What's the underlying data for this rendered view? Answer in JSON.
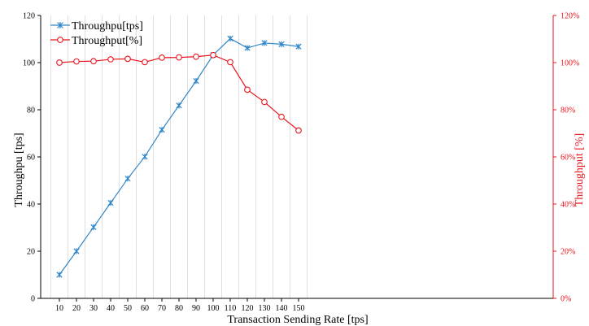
{
  "chart_data": {
    "type": "line",
    "x": [
      10,
      20,
      30,
      40,
      50,
      60,
      70,
      80,
      90,
      100,
      110,
      120,
      130,
      140,
      150
    ],
    "xlabel": "Transaction Sending Rate  [tps]",
    "ylabel_left": "Throughpu  [tps]",
    "ylabel_right": "Throughput  [%]",
    "ylim_left": [
      0,
      120
    ],
    "ylim_right": [
      0,
      120
    ],
    "yticks_left": [
      "0",
      "20",
      "40",
      "60",
      "80",
      "100",
      "120"
    ],
    "yticks_right": [
      "0%",
      "20%",
      "40%",
      "60%",
      "80%",
      "100%",
      "120%"
    ],
    "grid": "vertical",
    "legend_position": "top-left",
    "series": [
      {
        "name": "Throughpu[tps]",
        "axis": "left",
        "color": "#2e86c8",
        "marker": "star",
        "values": [
          10,
          20,
          30.2,
          40.5,
          50.8,
          60.1,
          71.5,
          81.8,
          92.2,
          103.2,
          110.2,
          106.2,
          108.3,
          107.8,
          106.8
        ]
      },
      {
        "name": "Throughput[%]",
        "axis": "right",
        "color": "#e8141c",
        "marker": "circle",
        "values": [
          100,
          100.5,
          100.6,
          101.4,
          101.6,
          100.2,
          102.1,
          102.2,
          102.5,
          103.2,
          100.2,
          88.5,
          83.3,
          77,
          71.2
        ]
      }
    ]
  }
}
